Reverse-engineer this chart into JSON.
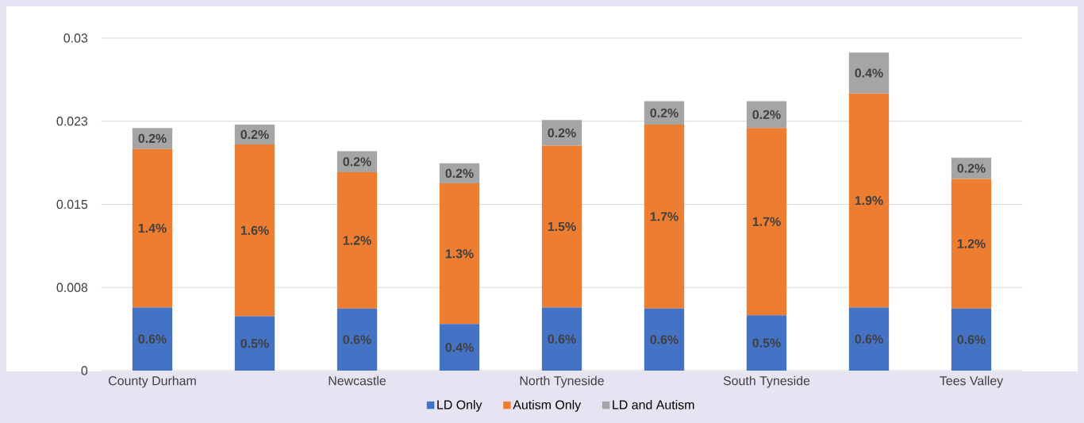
{
  "chart_data": {
    "type": "bar",
    "stacked": true,
    "categories": [
      "County Durham",
      null,
      "Newcastle",
      null,
      "North Tyneside",
      null,
      "South Tyneside",
      null,
      "Tees Valley"
    ],
    "series": [
      {
        "name": "LD Only",
        "color": "#4472c4",
        "values": [
          0.0057,
          0.0049,
          0.0056,
          0.0042,
          0.0057,
          0.0056,
          0.005,
          0.0057,
          0.0056
        ],
        "value_labels": [
          "0.6%",
          "0.5%",
          "0.6%",
          "0.4%",
          "0.6%",
          "0.6%",
          "0.5%",
          "0.6%",
          "0.6%"
        ]
      },
      {
        "name": "Autism Only",
        "color": "#ed7d31",
        "values": [
          0.0143,
          0.0155,
          0.0123,
          0.0127,
          0.0146,
          0.0166,
          0.0169,
          0.0193,
          0.0117
        ],
        "value_labels": [
          "1.4%",
          "1.6%",
          "1.2%",
          "1.3%",
          "1.5%",
          "1.7%",
          "1.7%",
          "1.9%",
          "1.2%"
        ]
      },
      {
        "name": "LD and Autism",
        "color": "#a5a5a5",
        "values": [
          0.0019,
          0.0018,
          0.0019,
          0.0018,
          0.0023,
          0.0021,
          0.0024,
          0.0037,
          0.0019
        ],
        "value_labels": [
          "0.2%",
          "0.2%",
          "0.2%",
          "0.2%",
          "0.2%",
          "0.2%",
          "0.2%",
          "0.4%",
          "0.2%"
        ]
      }
    ],
    "ylim": [
      0,
      0.03
    ],
    "yticks": [
      0,
      {
        "value": 0.0075,
        "label": "0.008"
      },
      0.015,
      {
        "value": 0.0225,
        "label": "0.023"
      },
      0.03
    ],
    "grid": "y",
    "legend": "bottom"
  }
}
